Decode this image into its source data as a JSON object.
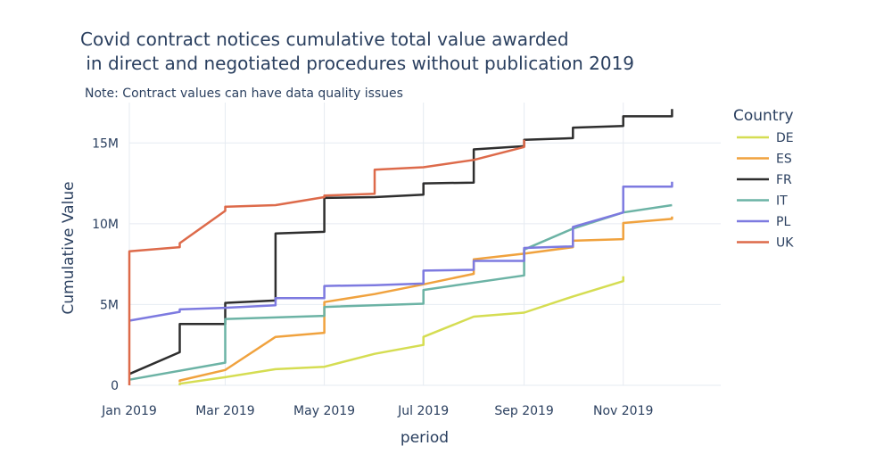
{
  "chart_data": {
    "type": "line",
    "title_line1": "Covid contract notices cumulative total value awarded",
    "title_line2": " in direct and negotiated procedures without publication 2019",
    "note": "Note: Contract values can have data quality issues",
    "xlabel": "period",
    "ylabel": "Cumulative Value",
    "legend_title": "Country",
    "legend_position": "right",
    "grid": true,
    "x_ticks": [
      {
        "label": "Jan 2019",
        "date": "2019-01-01"
      },
      {
        "label": "Mar 2019",
        "date": "2019-03-01"
      },
      {
        "label": "May 2019",
        "date": "2019-05-01"
      },
      {
        "label": "Jul 2019",
        "date": "2019-07-01"
      },
      {
        "label": "Sep 2019",
        "date": "2019-09-01"
      },
      {
        "label": "Nov 2019",
        "date": "2019-11-01"
      }
    ],
    "y_ticks": [
      {
        "label": "0",
        "value": 0
      },
      {
        "label": "5M",
        "value": 5000000
      },
      {
        "label": "10M",
        "value": 10000000
      },
      {
        "label": "15M",
        "value": 15000000
      }
    ],
    "xlim": [
      "2019-01-01",
      "2019-12-31"
    ],
    "ylim": [
      0,
      17500000
    ],
    "series": [
      {
        "name": "DE",
        "color": "#d5dd52",
        "points": [
          [
            "2019-02-01",
            0
          ],
          [
            "2019-02-01",
            100000
          ],
          [
            "2019-03-01",
            500000
          ],
          [
            "2019-04-01",
            1000000
          ],
          [
            "2019-05-01",
            1150000
          ],
          [
            "2019-06-01",
            1950000
          ],
          [
            "2019-07-01",
            2500000
          ],
          [
            "2019-07-01",
            3000000
          ],
          [
            "2019-08-01",
            4250000
          ],
          [
            "2019-09-01",
            4500000
          ],
          [
            "2019-10-01",
            5500000
          ],
          [
            "2019-11-01",
            6450000
          ],
          [
            "2019-11-01",
            6750000
          ]
        ]
      },
      {
        "name": "ES",
        "color": "#f0a23e",
        "points": [
          [
            "2019-02-01",
            200000
          ],
          [
            "2019-02-01",
            300000
          ],
          [
            "2019-03-01",
            950000
          ],
          [
            "2019-04-01",
            3000000
          ],
          [
            "2019-05-01",
            3250000
          ],
          [
            "2019-05-01",
            5150000
          ],
          [
            "2019-06-01",
            5650000
          ],
          [
            "2019-07-01",
            6250000
          ],
          [
            "2019-08-01",
            6900000
          ],
          [
            "2019-08-01",
            7800000
          ],
          [
            "2019-09-01",
            8150000
          ],
          [
            "2019-10-01",
            8550000
          ],
          [
            "2019-10-01",
            8950000
          ],
          [
            "2019-11-01",
            9050000
          ],
          [
            "2019-11-01",
            10050000
          ],
          [
            "2019-12-01",
            10300000
          ],
          [
            "2019-12-01",
            10450000
          ]
        ]
      },
      {
        "name": "FR",
        "color": "#2e2e2e",
        "points": [
          [
            "2019-01-01",
            700000
          ],
          [
            "2019-02-01",
            2050000
          ],
          [
            "2019-02-01",
            3800000
          ],
          [
            "2019-03-01",
            3800000
          ],
          [
            "2019-03-01",
            5100000
          ],
          [
            "2019-04-01",
            5250000
          ],
          [
            "2019-04-01",
            9400000
          ],
          [
            "2019-05-01",
            9500000
          ],
          [
            "2019-05-01",
            11600000
          ],
          [
            "2019-06-01",
            11650000
          ],
          [
            "2019-07-01",
            11800000
          ],
          [
            "2019-07-01",
            12500000
          ],
          [
            "2019-08-01",
            12550000
          ],
          [
            "2019-08-01",
            14600000
          ],
          [
            "2019-09-01",
            14800000
          ],
          [
            "2019-09-01",
            15200000
          ],
          [
            "2019-10-01",
            15300000
          ],
          [
            "2019-10-01",
            15950000
          ],
          [
            "2019-11-01",
            16050000
          ],
          [
            "2019-11-01",
            16650000
          ],
          [
            "2019-12-01",
            16650000
          ],
          [
            "2019-12-01",
            17100000
          ]
        ]
      },
      {
        "name": "IT",
        "color": "#6cb3a5",
        "points": [
          [
            "2019-01-01",
            350000
          ],
          [
            "2019-03-01",
            1400000
          ],
          [
            "2019-03-01",
            4100000
          ],
          [
            "2019-05-01",
            4300000
          ],
          [
            "2019-05-01",
            4850000
          ],
          [
            "2019-07-01",
            5050000
          ],
          [
            "2019-07-01",
            5900000
          ],
          [
            "2019-09-01",
            6800000
          ],
          [
            "2019-09-01",
            8400000
          ],
          [
            "2019-10-01",
            9700000
          ],
          [
            "2019-11-01",
            10700000
          ],
          [
            "2019-12-01",
            11150000
          ]
        ]
      },
      {
        "name": "PL",
        "color": "#7d7ae0",
        "points": [
          [
            "2019-01-01",
            4000000
          ],
          [
            "2019-02-01",
            4550000
          ],
          [
            "2019-02-01",
            4700000
          ],
          [
            "2019-03-01",
            4800000
          ],
          [
            "2019-04-01",
            4950000
          ],
          [
            "2019-04-01",
            5400000
          ],
          [
            "2019-05-01",
            5400000
          ],
          [
            "2019-05-01",
            6150000
          ],
          [
            "2019-06-01",
            6200000
          ],
          [
            "2019-07-01",
            6300000
          ],
          [
            "2019-07-01",
            7100000
          ],
          [
            "2019-08-01",
            7150000
          ],
          [
            "2019-08-01",
            7700000
          ],
          [
            "2019-09-01",
            7700000
          ],
          [
            "2019-09-01",
            8500000
          ],
          [
            "2019-10-01",
            8600000
          ],
          [
            "2019-10-01",
            9800000
          ],
          [
            "2019-11-01",
            10700000
          ],
          [
            "2019-11-01",
            12300000
          ],
          [
            "2019-12-01",
            12300000
          ],
          [
            "2019-12-01",
            12600000
          ]
        ]
      },
      {
        "name": "UK",
        "color": "#dd6a4a",
        "points": [
          [
            "2019-01-01",
            0
          ],
          [
            "2019-01-01",
            8300000
          ],
          [
            "2019-02-01",
            8550000
          ],
          [
            "2019-02-01",
            8800000
          ],
          [
            "2019-03-01",
            10800000
          ],
          [
            "2019-03-01",
            11050000
          ],
          [
            "2019-04-01",
            11150000
          ],
          [
            "2019-05-01",
            11650000
          ],
          [
            "2019-05-01",
            11750000
          ],
          [
            "2019-06-01",
            11850000
          ],
          [
            "2019-06-01",
            13350000
          ],
          [
            "2019-07-01",
            13500000
          ],
          [
            "2019-08-01",
            13950000
          ],
          [
            "2019-09-01",
            14750000
          ],
          [
            "2019-09-01",
            15200000
          ]
        ]
      }
    ]
  }
}
